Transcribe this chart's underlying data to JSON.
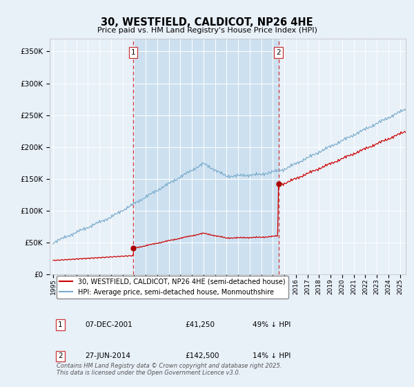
{
  "title": "30, WESTFIELD, CALDICOT, NP26 4HE",
  "subtitle": "Price paid vs. HM Land Registry's House Price Index (HPI)",
  "ylabel_ticks": [
    "£0",
    "£50K",
    "£100K",
    "£150K",
    "£200K",
    "£250K",
    "£300K",
    "£350K"
  ],
  "ytick_values": [
    0,
    50000,
    100000,
    150000,
    200000,
    250000,
    300000,
    350000
  ],
  "ylim": [
    0,
    370000
  ],
  "xlim_start": 1994.7,
  "xlim_end": 2025.5,
  "marker1_x": 2001.92,
  "marker2_x": 2014.49,
  "marker1_y": 41250,
  "marker2_y": 142500,
  "red_line_color": "#cc0000",
  "blue_line_color": "#7aaccc",
  "shade_color": "#cce0f0",
  "marker_dot_color": "#aa0000",
  "dashed_line_color": "#cc3333",
  "background_color": "#e8f0f8",
  "legend_label1": "30, WESTFIELD, CALDICOT, NP26 4HE (semi-detached house)",
  "legend_label2": "HPI: Average price, semi-detached house, Monmouthshire",
  "item1_label": "1",
  "item1_date": "07-DEC-2001",
  "item1_price": "£41,250",
  "item1_note": "49% ↓ HPI",
  "item2_label": "2",
  "item2_date": "27-JUN-2014",
  "item2_price": "£142,500",
  "item2_note": "14% ↓ HPI",
  "footer": "Contains HM Land Registry data © Crown copyright and database right 2025.\nThis data is licensed under the Open Government Licence v3.0."
}
